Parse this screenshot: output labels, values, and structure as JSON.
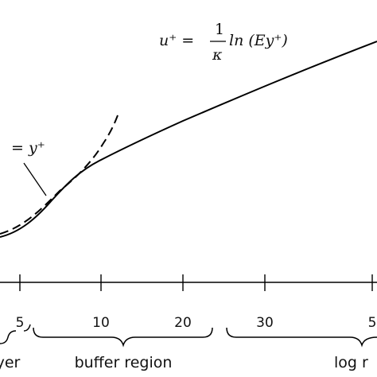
{
  "log_law": {
    "lhs": "u⁺ =",
    "numerator": "1",
    "denominator": "κ",
    "rhs": "ln (Ey⁺)"
  },
  "linear_law": "= y⁺",
  "axis": {
    "tick_labels": [
      "5",
      "10",
      "20",
      "30",
      "5"
    ]
  },
  "regions": [
    "yer",
    "buffer region",
    "log r"
  ]
}
